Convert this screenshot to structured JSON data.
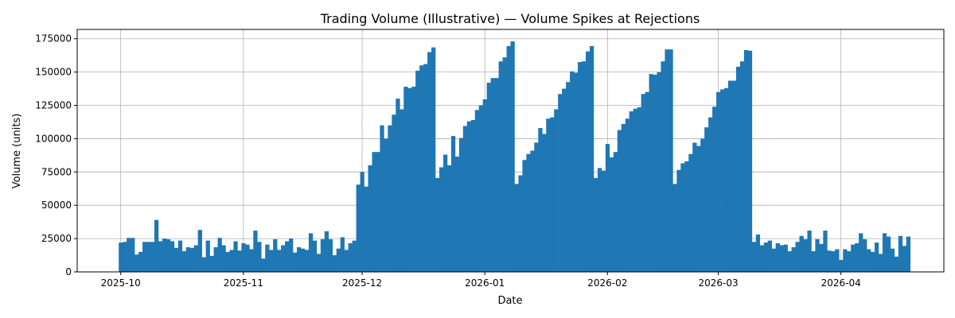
{
  "chart_data": {
    "type": "bar",
    "title": "Trading Volume (Illustrative) — Volume Spikes at Rejections",
    "xlabel": "Date",
    "ylabel": "Volume (units)",
    "x_start": "2025-10-01",
    "x_end": "2026-04-19",
    "xlim": [
      "2025-09-20",
      "2026-04-27"
    ],
    "ylim": [
      0,
      182000
    ],
    "x_ticks": [
      {
        "date": "2025-10-01",
        "label": "2025-10"
      },
      {
        "date": "2025-11-01",
        "label": "2025-11"
      },
      {
        "date": "2025-12-01",
        "label": "2025-12"
      },
      {
        "date": "2026-01-01",
        "label": "2026-01"
      },
      {
        "date": "2026-02-01",
        "label": "2026-02"
      },
      {
        "date": "2026-03-01",
        "label": "2026-03"
      },
      {
        "date": "2026-04-01",
        "label": "2026-04"
      }
    ],
    "y_ticks": [
      0,
      25000,
      50000,
      75000,
      100000,
      125000,
      150000,
      175000
    ],
    "y_tick_labels": [
      "0",
      "25000",
      "50000",
      "75000",
      "100000",
      "125000",
      "150000",
      "175000"
    ],
    "grid": true,
    "bar_color": "#1f77b4",
    "values": [
      22000,
      22500,
      25500,
      25500,
      13000,
      15000,
      22500,
      22500,
      22500,
      39000,
      23000,
      25000,
      24500,
      23000,
      18000,
      23500,
      15500,
      18500,
      18000,
      20000,
      31500,
      11000,
      23500,
      12000,
      18500,
      25500,
      20000,
      15000,
      16500,
      23000,
      16000,
      21500,
      20500,
      17000,
      31000,
      22500,
      10000,
      20500,
      16500,
      24500,
      16500,
      20000,
      23000,
      25000,
      14500,
      18500,
      17500,
      16500,
      29000,
      23500,
      13500,
      24500,
      30500,
      24500,
      12500,
      17500,
      26000,
      16500,
      21500,
      23500,
      65500,
      75000,
      64000,
      80000,
      90000,
      90000,
      110000,
      100000,
      110000,
      118000,
      130000,
      122000,
      139000,
      138000,
      139000,
      151000,
      155000,
      156000,
      165000,
      168500,
      70500,
      78500,
      88000,
      80000,
      102000,
      86500,
      100500,
      109500,
      113000,
      114000,
      121500,
      125000,
      129500,
      142000,
      145500,
      145500,
      158000,
      161000,
      169500,
      173000,
      66000,
      72500,
      84000,
      88500,
      91000,
      97000,
      108000,
      103500,
      115000,
      116000,
      122000,
      133500,
      137500,
      142500,
      150500,
      149500,
      157500,
      158000,
      165500,
      169500,
      70500,
      78000,
      76000,
      96000,
      86000,
      90000,
      106500,
      111000,
      115000,
      120500,
      122500,
      123500,
      133500,
      135000,
      148500,
      148000,
      150000,
      158000,
      167000,
      167000,
      66000,
      76500,
      81500,
      83000,
      88500,
      97000,
      94500,
      100000,
      108500,
      116000,
      124000,
      135000,
      137000,
      138000,
      143500,
      143500,
      154000,
      158000,
      166500,
      166000,
      22500,
      28000,
      20000,
      22000,
      23500,
      17500,
      21500,
      20000,
      20500,
      15500,
      18500,
      22500,
      27000,
      24500,
      31000,
      15500,
      24500,
      21000,
      31000,
      16000,
      15500,
      17000,
      9000,
      17000,
      15500,
      20500,
      21500,
      29000,
      24500,
      17000,
      15000,
      22000,
      13500,
      29000,
      26500,
      17500,
      11500,
      27000,
      19500,
      26500
    ]
  }
}
